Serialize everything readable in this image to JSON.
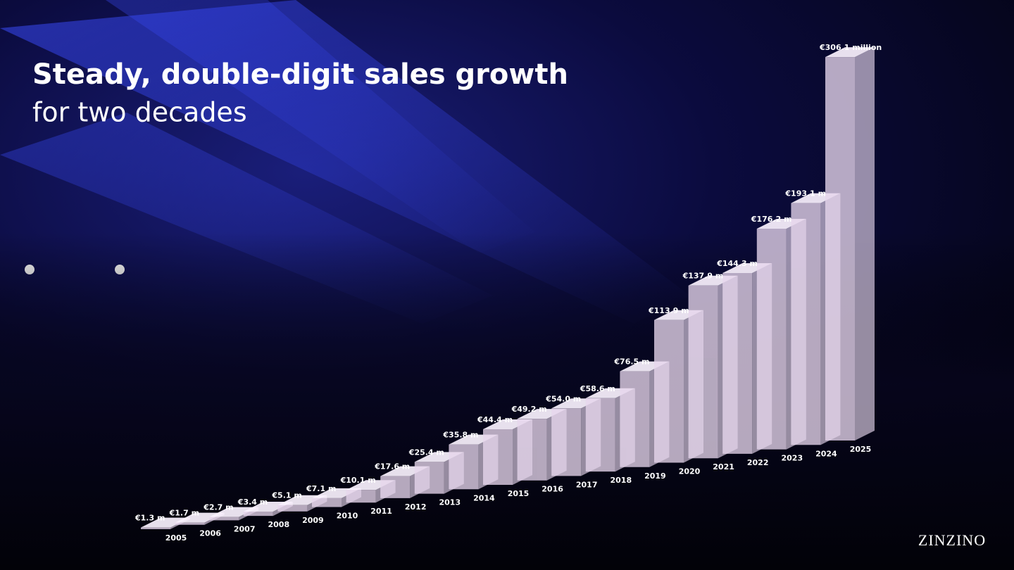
{
  "chart_data": {
    "type": "bar3d",
    "title": "Steady, double-digit sales growth",
    "subtitle": "for two decades",
    "categories": [
      "2005",
      "2006",
      "2007",
      "2008",
      "2009",
      "2010",
      "2011",
      "2012",
      "2013",
      "2014",
      "2015",
      "2016",
      "2017",
      "2018",
      "2019",
      "2020",
      "2021",
      "2022",
      "2023",
      "2024",
      "2025"
    ],
    "values": [
      1.3,
      1.7,
      2.7,
      3.4,
      5.1,
      7.1,
      10.1,
      17.6,
      25.4,
      35.8,
      44.4,
      49.2,
      54.0,
      58.6,
      76.5,
      113.9,
      137.9,
      144.3,
      176.2,
      193.1,
      306.1
    ],
    "value_labels": [
      "€1.3 m",
      "€1.7 m",
      "€2.7 m",
      "€3.4 m",
      "€5.1 m",
      "€7.1 m",
      "€10.1 m",
      "€17.6 m",
      "€25.4 m",
      "€35.8 m",
      "€44.4 m",
      "€49.2 m",
      "€54.0 m",
      "€58.6 m",
      "€76.5 m",
      "€113.9 m",
      "€137.9 m",
      "€144.3 m",
      "€176.2 m",
      "€193.1 m",
      "€306.1 million"
    ],
    "color": "#e6d6ec"
  },
  "logo": "ZINZINO"
}
